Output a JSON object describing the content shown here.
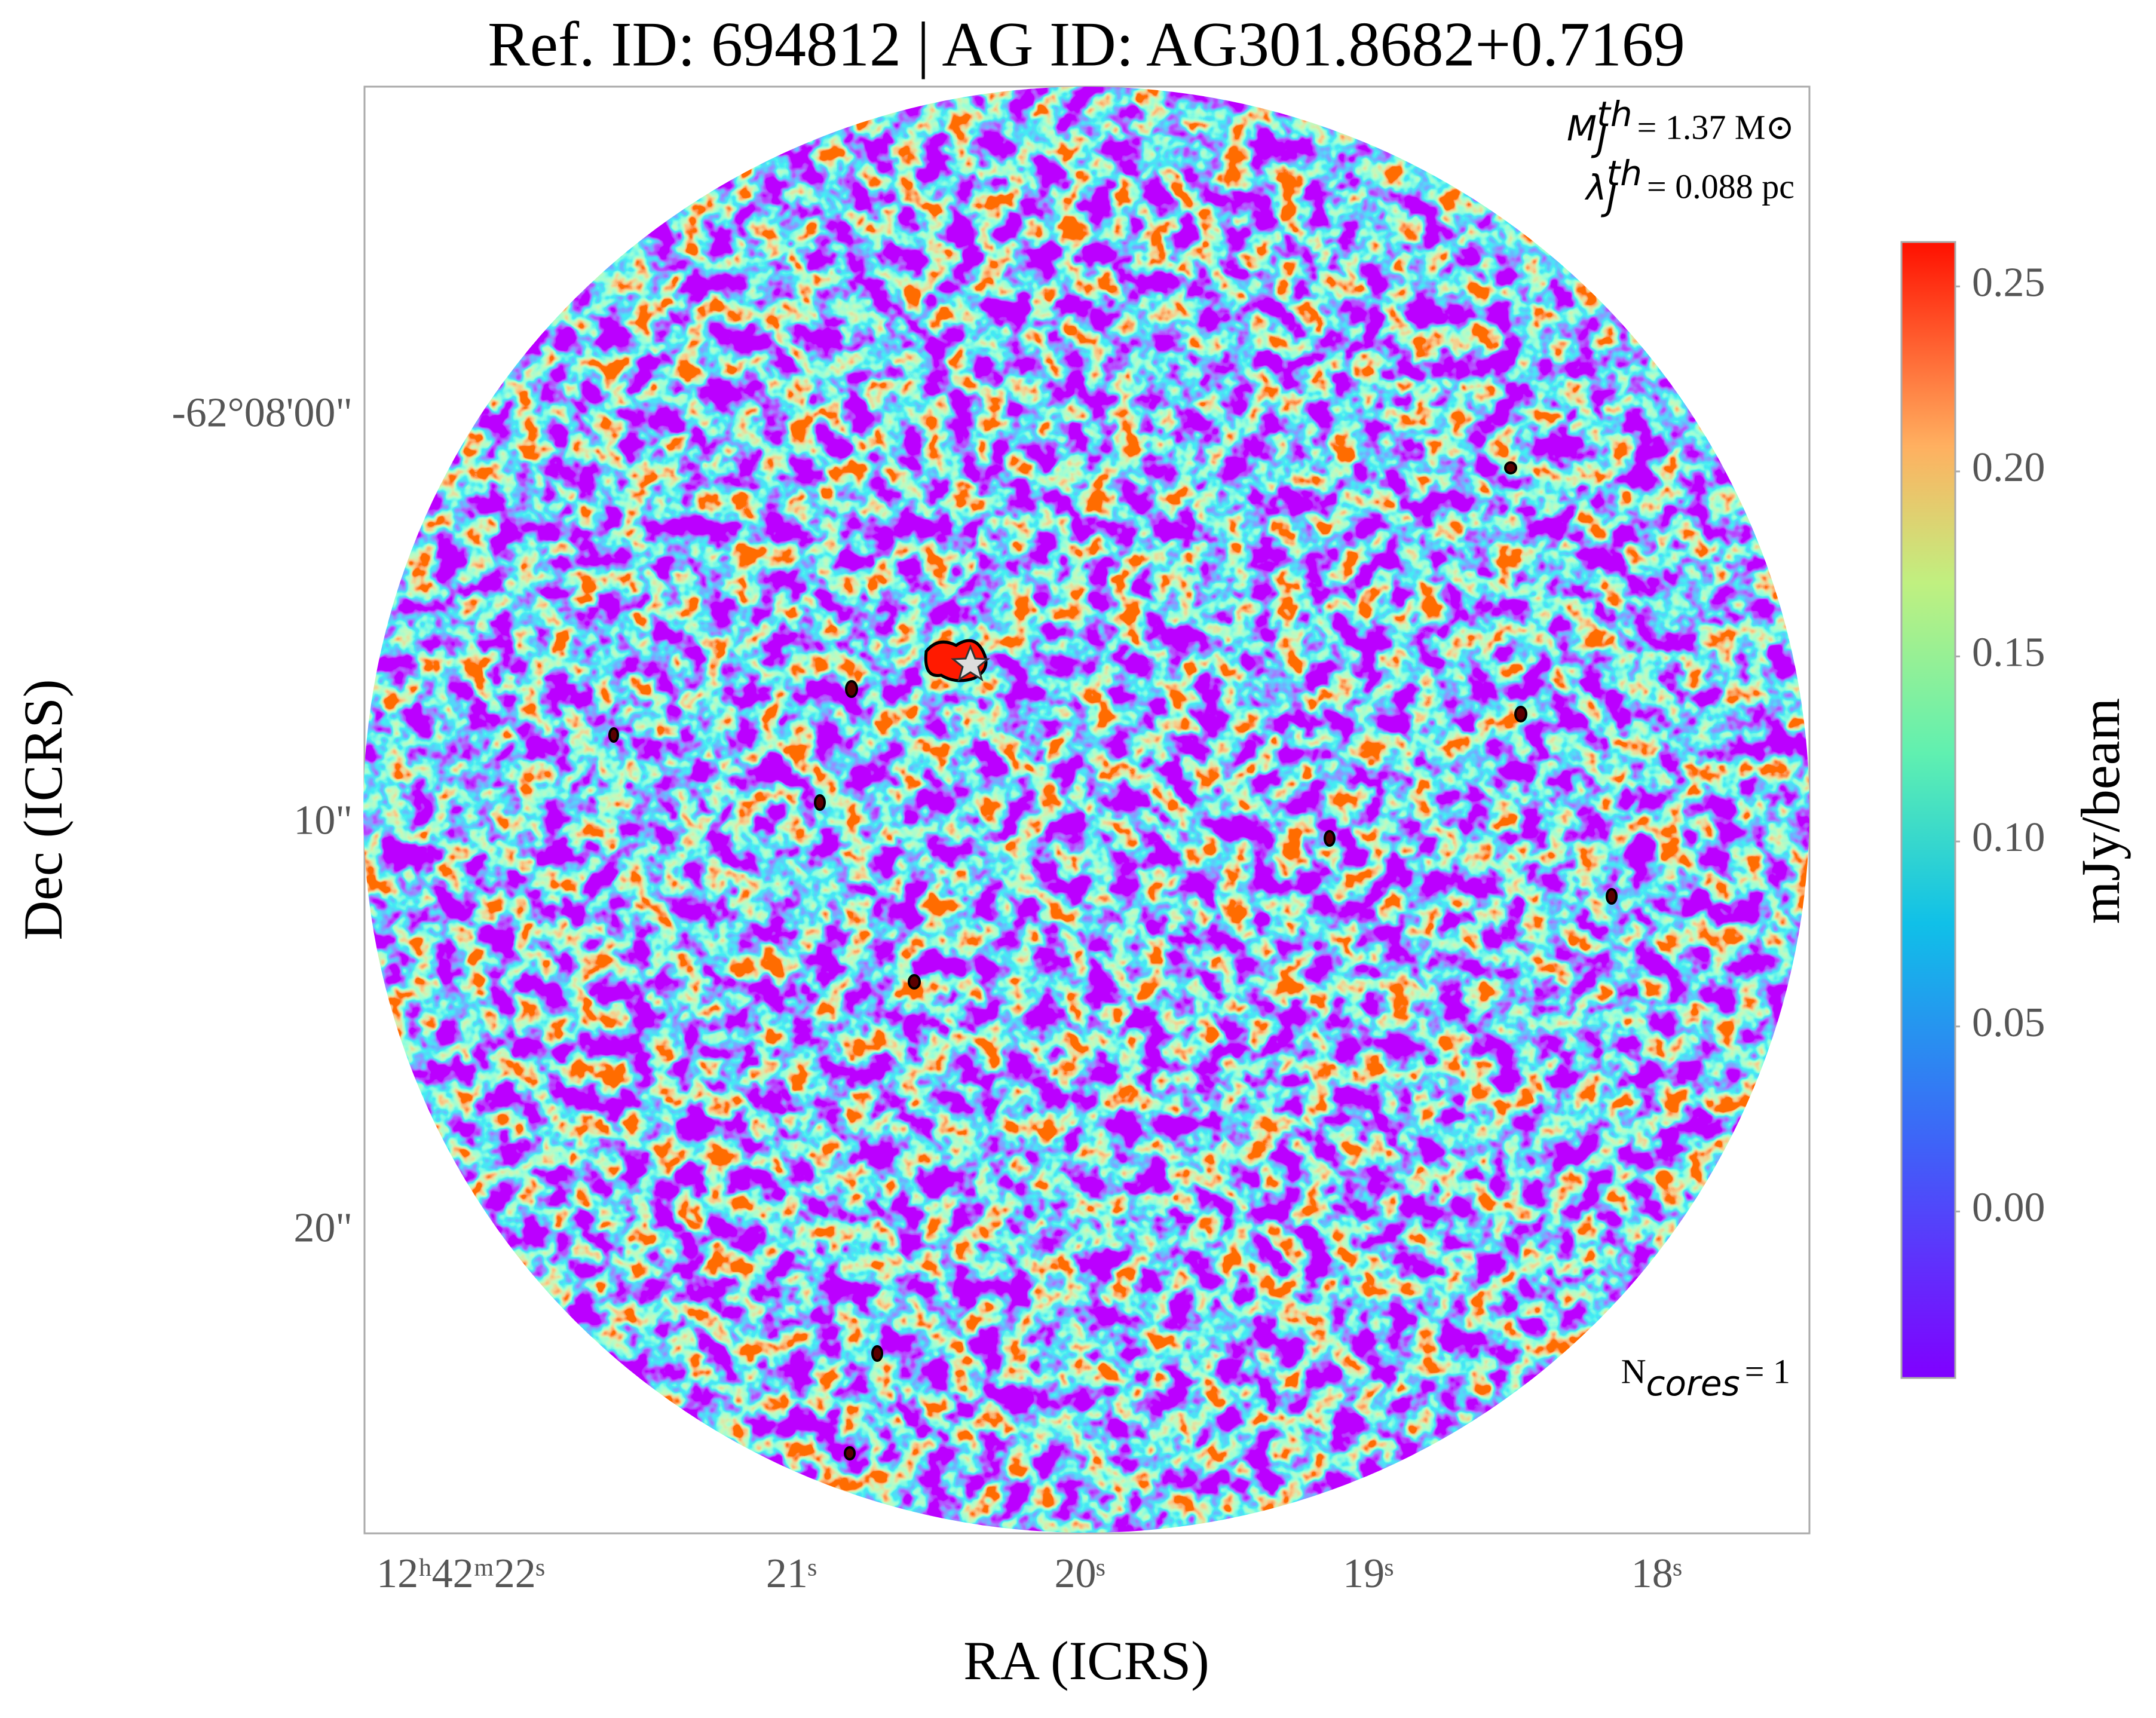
{
  "chart_data": {
    "type": "image",
    "title": "Ref. ID: 694812 | AG ID: AG301.8682+0.7169",
    "xlabel": "RA (ICRS)",
    "ylabel": "Dec (ICRS)",
    "xlim": [
      22.48,
      17.47
    ],
    "xticks": [
      {
        "value": 22,
        "label": "12ʰ42ᵐ22ˢ"
      },
      {
        "value": 21,
        "label": "21ˢ"
      },
      {
        "value": 20,
        "label": "20ˢ"
      },
      {
        "value": 19,
        "label": "19ˢ"
      },
      {
        "value": 18,
        "label": "18ˢ"
      }
    ],
    "ylim": [
      27.4,
      -8.1
    ],
    "yticks": [
      {
        "value": 0,
        "label": "-62°08'00\""
      },
      {
        "value": 10,
        "label": "10\""
      },
      {
        "value": 20,
        "label": "20\""
      }
    ],
    "colorbar": {
      "label": "mJy/beam",
      "clim": [
        -0.045,
        0.262
      ],
      "ticks": [
        {
          "value": 0,
          "label": "0.00"
        },
        0.05,
        {
          "value": 0.1,
          "label": "0.10"
        },
        0.15,
        {
          "value": 0.2,
          "label": "0.20"
        },
        0.25
      ]
    },
    "annotations": [
      {
        "symbol": "M",
        "sub": "J",
        "sup": "th",
        "text": "= 1.37 M⊙"
      },
      {
        "symbol": "λ",
        "sub": "J",
        "sup": "th",
        "text": "= 0.088 pc"
      },
      {
        "symbol": "N",
        "sub": "cores",
        "text": "= 1"
      }
    ]
  }
}
